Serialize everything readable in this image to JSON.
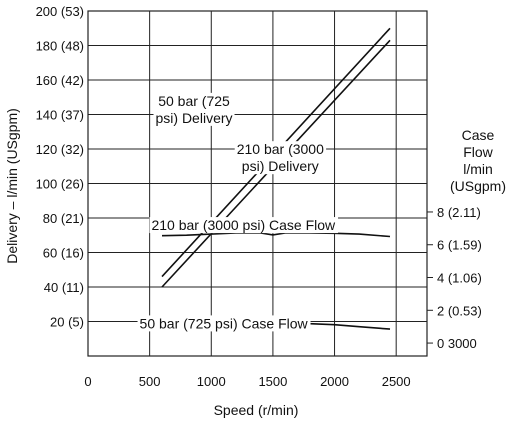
{
  "chart_data": {
    "type": "line",
    "xlabel": "Speed (r/min)",
    "ylabel": "Delivery – l/min (USgpm)",
    "y2label": [
      "Case",
      "Flow",
      "l/min",
      "(USgpm)"
    ],
    "xlim": [
      0,
      2750
    ],
    "ylim": [
      0,
      200
    ],
    "x_ticks": [
      {
        "value": 0,
        "label": "0"
      },
      {
        "value": 500,
        "label": "500"
      },
      {
        "value": 1000,
        "label": "1000"
      },
      {
        "value": 1500,
        "label": "1500"
      },
      {
        "value": 2000,
        "label": "2000"
      },
      {
        "value": 2500,
        "label": "2500"
      }
    ],
    "y_ticks": [
      {
        "value": 20,
        "label": "20 (5)"
      },
      {
        "value": 40,
        "label": "40 (11)"
      },
      {
        "value": 60,
        "label": "60 (16)"
      },
      {
        "value": 80,
        "label": "80 (21)"
      },
      {
        "value": 100,
        "label": "100 (26)"
      },
      {
        "value": 120,
        "label": "120 (32)"
      },
      {
        "value": 140,
        "label": "140 (37)"
      },
      {
        "value": 160,
        "label": "160 (42)"
      },
      {
        "value": 180,
        "label": "180 (48)"
      },
      {
        "value": 200,
        "label": "200 (53)"
      }
    ],
    "y2_ticks": [
      {
        "value": 0,
        "label": "0 3000"
      },
      {
        "value": 2,
        "label": "2 (0.53)"
      },
      {
        "value": 4,
        "label": "4 (1.06)"
      },
      {
        "value": 6,
        "label": "6 (1.59)"
      },
      {
        "value": 8,
        "label": "8 (2.11)"
      }
    ],
    "y2_map": {
      "case_zero_at_delivery": 7.5,
      "delivery_per_case_unit": 9.5
    },
    "grid": true,
    "series": [
      {
        "name": "50 bar (725 psi) Delivery",
        "axis": "delivery",
        "x": [
          600,
          2450
        ],
        "y": [
          46,
          190
        ]
      },
      {
        "name": "210 bar (3000 psi) Delivery",
        "axis": "delivery",
        "x": [
          600,
          2450
        ],
        "y": [
          40,
          183
        ]
      },
      {
        "name": "210 bar (3000 psi) Case Flow",
        "axis": "case",
        "x": [
          600,
          800,
          1000,
          1200,
          1400,
          1500,
          1600,
          1800,
          2000,
          2200,
          2450
        ],
        "y": [
          6.55,
          6.58,
          6.65,
          6.72,
          6.72,
          6.6,
          6.72,
          6.72,
          6.7,
          6.65,
          6.5
        ]
      },
      {
        "name": "50 bar (725 psi) Case Flow",
        "axis": "case",
        "x": [
          600,
          800,
          1000,
          1200,
          1400,
          1600,
          1800,
          2000,
          2200,
          2450
        ],
        "y": [
          0.9,
          1.0,
          1.1,
          1.15,
          1.2,
          1.2,
          1.18,
          1.12,
          1.0,
          0.85
        ]
      }
    ],
    "annotations": [
      {
        "lines": [
          "50 bar (725",
          "psi) Delivery"
        ],
        "x": 860,
        "y": 145
      },
      {
        "lines": [
          "210 bar (3000",
          "psi) Delivery"
        ],
        "x": 1560,
        "y": 117
      },
      {
        "lines": [
          "210 bar (3000 psi) Case Flow"
        ],
        "x": 1260,
        "y": 73
      },
      {
        "lines": [
          "50 bar (725 psi) Case Flow"
        ],
        "x": 1100,
        "y": 16
      }
    ]
  }
}
